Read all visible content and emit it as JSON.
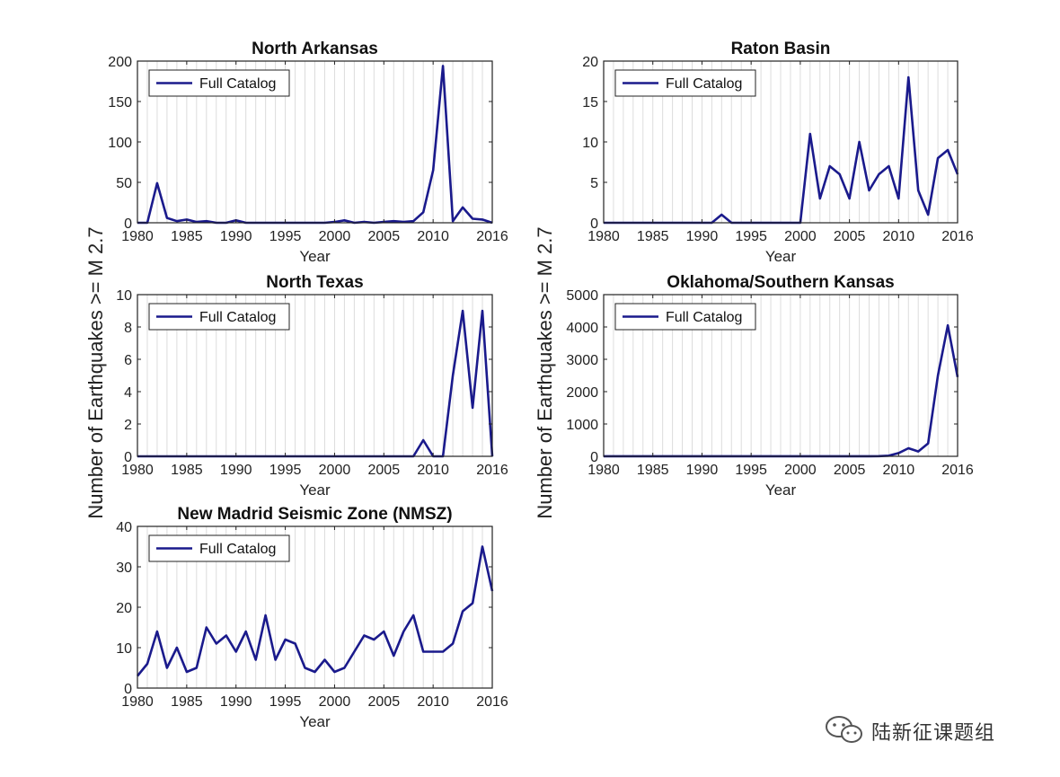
{
  "figure": {
    "ylabel": "Number of Earthquakes >= M 2.7",
    "line_color": "#1a1a8c"
  },
  "chart_data": [
    {
      "type": "line",
      "title": "North Arkansas",
      "xlabel": "Year",
      "ylabel": "",
      "xlim": [
        1980,
        2016
      ],
      "ylim": [
        0,
        200
      ],
      "xticks": [
        1980,
        1985,
        1990,
        1995,
        2000,
        2005,
        2010,
        2016
      ],
      "yticks": [
        0,
        50,
        100,
        150,
        200
      ],
      "grid": true,
      "legend_position": "top-left",
      "series": [
        {
          "name": "Full Catalog",
          "x": [
            1980,
            1981,
            1982,
            1983,
            1984,
            1985,
            1986,
            1987,
            1988,
            1989,
            1990,
            1991,
            1992,
            1993,
            1994,
            1995,
            1996,
            1997,
            1998,
            1999,
            2000,
            2001,
            2002,
            2003,
            2004,
            2005,
            2006,
            2007,
            2008,
            2009,
            2010,
            2011,
            2012,
            2013,
            2014,
            2015,
            2016
          ],
          "y": [
            0,
            0,
            49,
            6,
            2,
            4,
            1,
            2,
            0,
            0,
            3,
            0,
            0,
            0,
            0,
            0,
            0,
            0,
            0,
            0,
            1,
            3,
            0,
            1,
            0,
            1,
            2,
            1,
            2,
            13,
            65,
            194,
            2,
            19,
            5,
            4,
            0
          ]
        }
      ]
    },
    {
      "type": "line",
      "title": "Raton Basin",
      "xlabel": "Year",
      "ylabel": "",
      "xlim": [
        1980,
        2016
      ],
      "ylim": [
        0,
        20
      ],
      "xticks": [
        1980,
        1985,
        1990,
        1995,
        2000,
        2005,
        2010,
        2016
      ],
      "yticks": [
        0,
        5,
        10,
        15,
        20
      ],
      "grid": true,
      "legend_position": "top-left",
      "series": [
        {
          "name": "Full Catalog",
          "x": [
            1980,
            1981,
            1982,
            1983,
            1984,
            1985,
            1986,
            1987,
            1988,
            1989,
            1990,
            1991,
            1992,
            1993,
            1994,
            1995,
            1996,
            1997,
            1998,
            1999,
            2000,
            2001,
            2002,
            2003,
            2004,
            2005,
            2006,
            2007,
            2008,
            2009,
            2010,
            2011,
            2012,
            2013,
            2014,
            2015,
            2016
          ],
          "y": [
            0,
            0,
            0,
            0,
            0,
            0,
            0,
            0,
            0,
            0,
            0,
            0,
            1,
            0,
            0,
            0,
            0,
            0,
            0,
            0,
            0,
            11,
            3,
            7,
            6,
            3,
            10,
            4,
            6,
            7,
            3,
            18,
            4,
            1,
            8,
            9,
            6
          ]
        }
      ]
    },
    {
      "type": "line",
      "title": "North Texas",
      "xlabel": "Year",
      "ylabel": "",
      "xlim": [
        1980,
        2016
      ],
      "ylim": [
        0,
        10
      ],
      "xticks": [
        1980,
        1985,
        1990,
        1995,
        2000,
        2005,
        2010,
        2016
      ],
      "yticks": [
        0,
        2,
        4,
        6,
        8,
        10
      ],
      "grid": true,
      "legend_position": "top-left",
      "series": [
        {
          "name": "Full Catalog",
          "x": [
            1980,
            1981,
            1982,
            1983,
            1984,
            1985,
            1986,
            1987,
            1988,
            1989,
            1990,
            1991,
            1992,
            1993,
            1994,
            1995,
            1996,
            1997,
            1998,
            1999,
            2000,
            2001,
            2002,
            2003,
            2004,
            2005,
            2006,
            2007,
            2008,
            2009,
            2010,
            2011,
            2012,
            2013,
            2014,
            2015,
            2016
          ],
          "y": [
            0,
            0,
            0,
            0,
            0,
            0,
            0,
            0,
            0,
            0,
            0,
            0,
            0,
            0,
            0,
            0,
            0,
            0,
            0,
            0,
            0,
            0,
            0,
            0,
            0,
            0,
            0,
            0,
            0,
            1,
            0,
            0,
            5,
            9,
            3,
            9,
            0
          ]
        }
      ]
    },
    {
      "type": "line",
      "title": "Oklahoma/Southern Kansas",
      "xlabel": "Year",
      "ylabel": "",
      "xlim": [
        1980,
        2016
      ],
      "ylim": [
        0,
        5000
      ],
      "xticks": [
        1980,
        1985,
        1990,
        1995,
        2000,
        2005,
        2010,
        2016
      ],
      "yticks": [
        0,
        1000,
        2000,
        3000,
        4000,
        5000
      ],
      "grid": true,
      "legend_position": "top-left",
      "series": [
        {
          "name": "Full Catalog",
          "x": [
            1980,
            1981,
            1982,
            1983,
            1984,
            1985,
            1986,
            1987,
            1988,
            1989,
            1990,
            1991,
            1992,
            1993,
            1994,
            1995,
            1996,
            1997,
            1998,
            1999,
            2000,
            2001,
            2002,
            2003,
            2004,
            2005,
            2006,
            2007,
            2008,
            2009,
            2010,
            2011,
            2012,
            2013,
            2014,
            2015,
            2016
          ],
          "y": [
            2,
            2,
            2,
            2,
            2,
            2,
            2,
            2,
            2,
            2,
            2,
            2,
            4,
            2,
            2,
            2,
            2,
            2,
            2,
            2,
            2,
            2,
            2,
            2,
            3,
            2,
            3,
            3,
            5,
            20,
            100,
            250,
            150,
            400,
            2500,
            4050,
            2450
          ]
        }
      ]
    },
    {
      "type": "line",
      "title": "New Madrid Seismic Zone (NMSZ)",
      "xlabel": "Year",
      "ylabel": "",
      "xlim": [
        1980,
        2016
      ],
      "ylim": [
        0,
        40
      ],
      "xticks": [
        1980,
        1985,
        1990,
        1995,
        2000,
        2005,
        2010,
        2016
      ],
      "yticks": [
        0,
        10,
        20,
        30,
        40
      ],
      "grid": true,
      "legend_position": "top-left",
      "series": [
        {
          "name": "Full Catalog",
          "x": [
            1980,
            1981,
            1982,
            1983,
            1984,
            1985,
            1986,
            1987,
            1988,
            1989,
            1990,
            1991,
            1992,
            1993,
            1994,
            1995,
            1996,
            1997,
            1998,
            1999,
            2000,
            2001,
            2002,
            2003,
            2004,
            2005,
            2006,
            2007,
            2008,
            2009,
            2010,
            2011,
            2012,
            2013,
            2014,
            2015,
            2016
          ],
          "y": [
            3,
            6,
            14,
            5,
            10,
            4,
            5,
            15,
            11,
            13,
            9,
            14,
            7,
            18,
            7,
            12,
            11,
            5,
            4,
            7,
            4,
            5,
            9,
            13,
            12,
            14,
            8,
            14,
            18,
            9,
            9,
            9,
            11,
            19,
            21,
            35,
            24
          ]
        }
      ]
    }
  ],
  "watermark": {
    "text": "陆新征课题组",
    "icon": "wechat-icon"
  }
}
